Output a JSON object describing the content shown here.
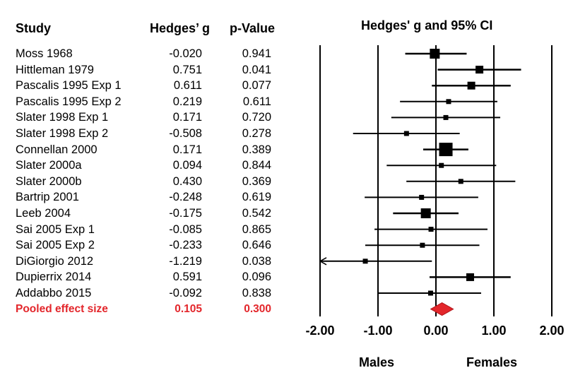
{
  "headers": {
    "study": "Study",
    "hedges_g": "Hedges’ g",
    "p_value": "p-Value",
    "plot_title": "Hedges' g and 95% CI"
  },
  "direction_labels": {
    "left": "Males",
    "right": "Females"
  },
  "colors": {
    "pooled": "#e3262b",
    "marks": "#000000"
  },
  "chart_data": {
    "type": "forest",
    "title": "Hedges' g and 95% CI",
    "xlim": [
      -2.0,
      2.0
    ],
    "xticks": [
      -2.0,
      -1.0,
      0.0,
      1.0,
      2.0
    ],
    "xtick_labels": [
      "-2.00",
      "-1.00",
      "0.00",
      "1.00",
      "2.00"
    ],
    "studies": [
      {
        "study": "Moss 1968",
        "g": -0.02,
        "g_label": "-0.020",
        "p": "0.941",
        "ci": [
          -0.53,
          0.53
        ],
        "weight": 3
      },
      {
        "study": "Hittleman 1979",
        "g": 0.751,
        "g_label": "0.751",
        "p": "0.041",
        "ci": [
          0.03,
          1.47
        ],
        "weight": 2
      },
      {
        "study": "Pascalis 1995 Exp 1",
        "g": 0.611,
        "g_label": "0.611",
        "p": "0.077",
        "ci": [
          -0.07,
          1.29
        ],
        "weight": 2
      },
      {
        "study": "Pascalis 1995 Exp 2",
        "g": 0.219,
        "g_label": "0.219",
        "p": "0.611",
        "ci": [
          -0.62,
          1.06
        ],
        "weight": 1
      },
      {
        "study": "Slater 1998 Exp 1",
        "g": 0.171,
        "g_label": "0.171",
        "p": "0.720",
        "ci": [
          -0.77,
          1.11
        ],
        "weight": 1
      },
      {
        "study": "Slater 1998 Exp 2",
        "g": -0.508,
        "g_label": "-0.508",
        "p": "0.278",
        "ci": [
          -1.43,
          0.41
        ],
        "weight": 1
      },
      {
        "study": "Connellan 2000",
        "g": 0.171,
        "g_label": "0.171",
        "p": "0.389",
        "ci": [
          -0.22,
          0.56
        ],
        "weight": 4
      },
      {
        "study": "Slater 2000a",
        "g": 0.094,
        "g_label": "0.094",
        "p": "0.844",
        "ci": [
          -0.85,
          1.04
        ],
        "weight": 1
      },
      {
        "study": "Slater 2000b",
        "g": 0.43,
        "g_label": "0.430",
        "p": "0.369",
        "ci": [
          -0.51,
          1.37
        ],
        "weight": 1
      },
      {
        "study": "Bartrip 2001",
        "g": -0.248,
        "g_label": "-0.248",
        "p": "0.619",
        "ci": [
          -1.23,
          0.73
        ],
        "weight": 1
      },
      {
        "study": "Leeb 2004",
        "g": -0.175,
        "g_label": "-0.175",
        "p": "0.542",
        "ci": [
          -0.74,
          0.39
        ],
        "weight": 3
      },
      {
        "study": "Sai 2005 Exp 1",
        "g": -0.085,
        "g_label": "-0.085",
        "p": "0.865",
        "ci": [
          -1.06,
          0.89
        ],
        "weight": 1
      },
      {
        "study": "Sai 2005 Exp 2",
        "g": -0.233,
        "g_label": "-0.233",
        "p": "0.646",
        "ci": [
          -1.22,
          0.75
        ],
        "weight": 1
      },
      {
        "study": "DiGiorgio 2012",
        "g": -1.219,
        "g_label": "-1.219",
        "p": "0.038",
        "ci": [
          -2.0,
          -0.07
        ],
        "weight": 1,
        "arrow_left": true
      },
      {
        "study": "Dupierrix 2014",
        "g": 0.591,
        "g_label": "0.591",
        "p": "0.096",
        "ci": [
          -0.11,
          1.29
        ],
        "weight": 2
      },
      {
        "study": "Addabbo 2015",
        "g": -0.092,
        "g_label": "-0.092",
        "p": "0.838",
        "ci": [
          -0.99,
          0.78
        ],
        "weight": 1
      }
    ],
    "pooled": {
      "label": "Pooled effect size",
      "g": 0.105,
      "g_label": "0.105",
      "p": "0.300",
      "ci": [
        -0.09,
        0.3
      ]
    }
  }
}
